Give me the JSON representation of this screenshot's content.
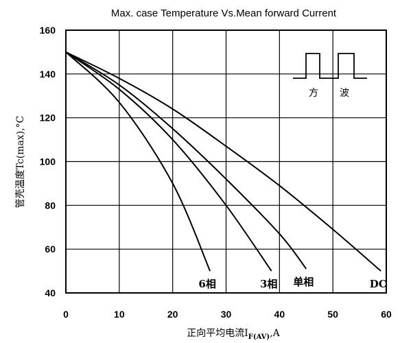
{
  "chart_data": {
    "type": "line",
    "title": "Max. case Temperature Vs.Mean forward Current",
    "ylabel": "管壳温度Tc(max),°C",
    "xlabel": "正向平均电流I",
    "xlabel_subscript": "F(AV)",
    "xlabel_suffix": ",A",
    "xlim": [
      0,
      60
    ],
    "ylim": [
      40,
      160
    ],
    "xticks": [
      0,
      10,
      20,
      30,
      40,
      50,
      60
    ],
    "yticks": [
      40,
      60,
      80,
      100,
      120,
      140,
      160
    ],
    "grid": true,
    "series": [
      {
        "name": "DC",
        "x": [
          0,
          10,
          20,
          30,
          40,
          50,
          59
        ],
        "y": [
          150,
          138,
          124,
          107,
          89,
          69,
          50
        ]
      },
      {
        "name": "单相",
        "x": [
          0,
          10,
          20,
          30,
          40,
          45
        ],
        "y": [
          150,
          135,
          115,
          92,
          67,
          51
        ]
      },
      {
        "name": "3相",
        "x": [
          0,
          10,
          20,
          30,
          38.5
        ],
        "y": [
          150,
          133,
          110,
          80,
          50
        ]
      },
      {
        "name": "6相",
        "x": [
          0,
          10,
          20,
          27
        ],
        "y": [
          150,
          127,
          90,
          50
        ]
      }
    ],
    "inset": {
      "label_left": "方",
      "label_right": "波"
    }
  }
}
